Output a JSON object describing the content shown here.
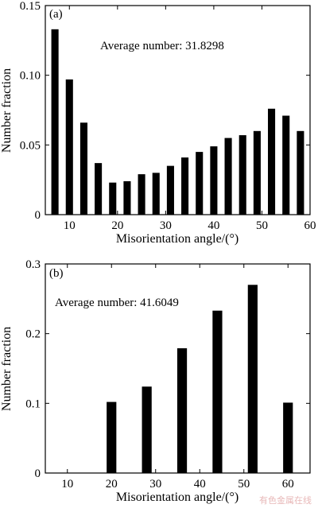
{
  "chart_data": [
    {
      "type": "bar",
      "panel_label": "(a)",
      "annotation": "Average number: 31.8298",
      "xlabel": "Misorientation angle/(°)",
      "ylabel": "Number fraction",
      "xlim": [
        5,
        60
      ],
      "ylim": [
        0,
        0.15
      ],
      "x_ticks": [
        "10",
        "20",
        "30",
        "40",
        "50",
        "60"
      ],
      "y_ticks": [
        "0",
        "0.05",
        "0.10",
        "0.15"
      ],
      "bar_width": 1.5,
      "x": [
        7,
        10,
        13,
        16,
        19,
        22,
        25,
        28,
        31,
        34,
        37,
        40,
        43,
        46,
        49,
        52,
        55,
        58
      ],
      "values": [
        0.133,
        0.097,
        0.066,
        0.037,
        0.023,
        0.024,
        0.029,
        0.03,
        0.035,
        0.041,
        0.045,
        0.049,
        0.055,
        0.057,
        0.06,
        0.076,
        0.071,
        0.06
      ],
      "color": "#000000"
    },
    {
      "type": "bar",
      "panel_label": "(b)",
      "annotation": "Average number: 41.6049",
      "xlabel": "Misorientation angle/(°)",
      "ylabel": "Number fraction",
      "xlim": [
        5,
        65
      ],
      "ylim": [
        0,
        0.3
      ],
      "x_ticks": [
        "10",
        "20",
        "30",
        "40",
        "50",
        "60"
      ],
      "y_ticks": [
        "0",
        "0.1",
        "0.2",
        "0.3"
      ],
      "bar_width": 2.2,
      "x": [
        20,
        28,
        36,
        44,
        52,
        60
      ],
      "values": [
        0.102,
        0.124,
        0.179,
        0.233,
        0.27,
        0.101
      ],
      "color": "#000000"
    }
  ],
  "watermark": "有色金属在线"
}
